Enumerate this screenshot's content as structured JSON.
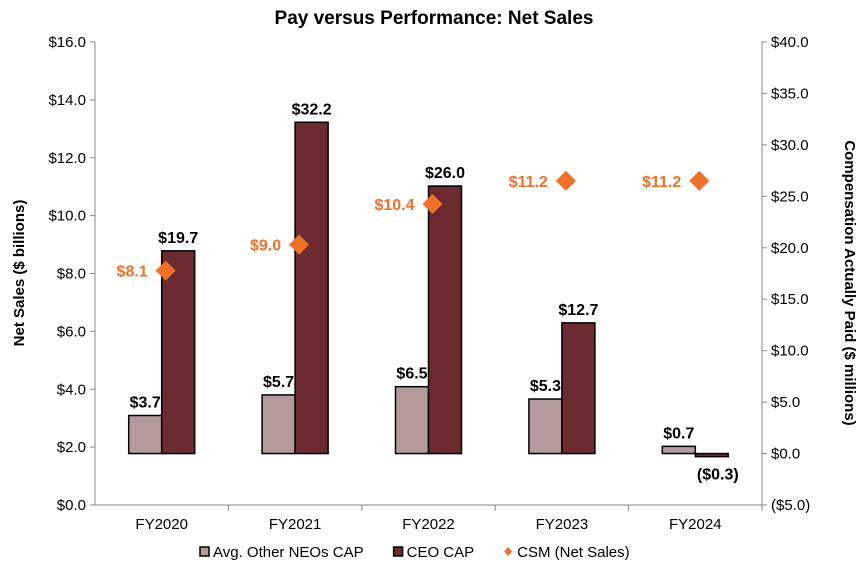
{
  "chart_data": {
    "type": "bar",
    "title": "Pay versus Performance: Net Sales",
    "categories": [
      "FY2020",
      "FY2021",
      "FY2022",
      "FY2023",
      "FY2024"
    ],
    "ylabel_left": "Net Sales ($ billions)",
    "ylabel_right": "Compensation Actually Paid ($ millions)",
    "ylim_left": [
      0,
      16
    ],
    "ylim_right": [
      -5,
      40
    ],
    "left_ticks": [
      "$0.0",
      "$2.0",
      "$4.0",
      "$6.0",
      "$8.0",
      "$10.0",
      "$12.0",
      "$14.0",
      "$16.0"
    ],
    "right_ticks": [
      "($5.0)",
      "$0.0",
      "$5.0",
      "$10.0",
      "$15.0",
      "$20.0",
      "$25.0",
      "$30.0",
      "$35.0",
      "$40.0"
    ],
    "grid": false,
    "legend_position": "bottom",
    "series": [
      {
        "name": "Avg. Other NEOs CAP",
        "type": "bar",
        "axis": "right",
        "color": "#b39b9b",
        "values": [
          3.7,
          5.7,
          6.5,
          5.3,
          0.7
        ],
        "labels": [
          "$3.7",
          "$5.7",
          "$6.5",
          "$5.3",
          "$0.7"
        ]
      },
      {
        "name": "CEO CAP",
        "type": "bar",
        "axis": "right",
        "color": "#6b2b30",
        "values": [
          19.7,
          32.2,
          26.0,
          12.7,
          -0.3
        ],
        "labels": [
          "$19.7",
          "$32.2",
          "$26.0",
          "$12.7",
          "($0.3)"
        ]
      },
      {
        "name": "CSM (Net Sales)",
        "type": "scatter",
        "marker": "diamond",
        "axis": "left",
        "color": "#f07028",
        "values": [
          8.1,
          9.0,
          10.4,
          11.2,
          11.2
        ],
        "labels": [
          "$8.1",
          "$9.0",
          "$10.4",
          "$11.2",
          "$11.2"
        ]
      }
    ]
  }
}
